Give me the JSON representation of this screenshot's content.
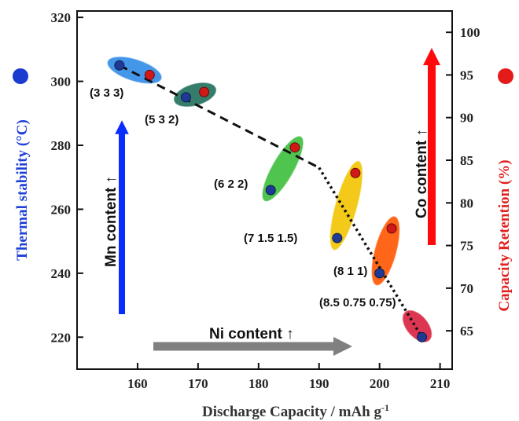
{
  "chart_data": {
    "type": "scatter",
    "xlabel": "Discharge Capacity / mAh g",
    "xlabel_sup": "-1",
    "ylabel_left": "Thermal stability (°C)",
    "ylabel_right": "Capacity Retention (%)",
    "xlim": [
      150,
      212
    ],
    "ylim_left": [
      210,
      322
    ],
    "ylim_right": [
      60.5,
      102.5
    ],
    "x_ticks": [
      160,
      170,
      180,
      190,
      200,
      210
    ],
    "y_left_ticks": [
      220,
      240,
      260,
      280,
      300,
      320
    ],
    "y_right_ticks": [
      65,
      70,
      75,
      80,
      85,
      90,
      95,
      100
    ],
    "grid": false,
    "series": [
      {
        "name": "Thermal stability (°C)",
        "axis": "left",
        "color": "#1f3a93",
        "x": [
          157,
          168,
          182,
          193,
          200,
          207
        ],
        "y": [
          305,
          295,
          266,
          251,
          240,
          220
        ]
      },
      {
        "name": "Capacity Retention (%)",
        "axis": "right",
        "color": "#d01818",
        "x": [
          162,
          171,
          186,
          196,
          202
        ],
        "y": [
          95,
          93,
          86.5,
          83.5,
          77
        ]
      }
    ],
    "compositions": [
      {
        "label": "(3 3 3)",
        "color": "#2f8be6"
      },
      {
        "label": "(5 3 2)",
        "color": "#1f6e5a"
      },
      {
        "label": "(6 2 2)",
        "color": "#3cbf3c"
      },
      {
        "label": "(7 1.5 1.5)",
        "color": "#f2c400"
      },
      {
        "label": "(8 1 1)",
        "color": "#ff5500"
      },
      {
        "label": "(8.5 0.75 0.75)",
        "color": "#d82040"
      }
    ],
    "trend_line": {
      "dashed": {
        "x": [
          157,
          190
        ],
        "y": [
          305,
          273
        ]
      },
      "dotted": {
        "x": [
          190,
          207
        ],
        "y": [
          273,
          220
        ]
      }
    },
    "annotations": {
      "ni": "Ni content",
      "mn": "Mn content",
      "co": "Co content",
      "up_arrow": "↑"
    },
    "legend_markers": {
      "left": "#1a3ccf",
      "right": "#e51b1b"
    },
    "arrow_colors": {
      "ni": "#808080",
      "mn": "#0a2dff",
      "co": "#ff0a0a"
    }
  }
}
